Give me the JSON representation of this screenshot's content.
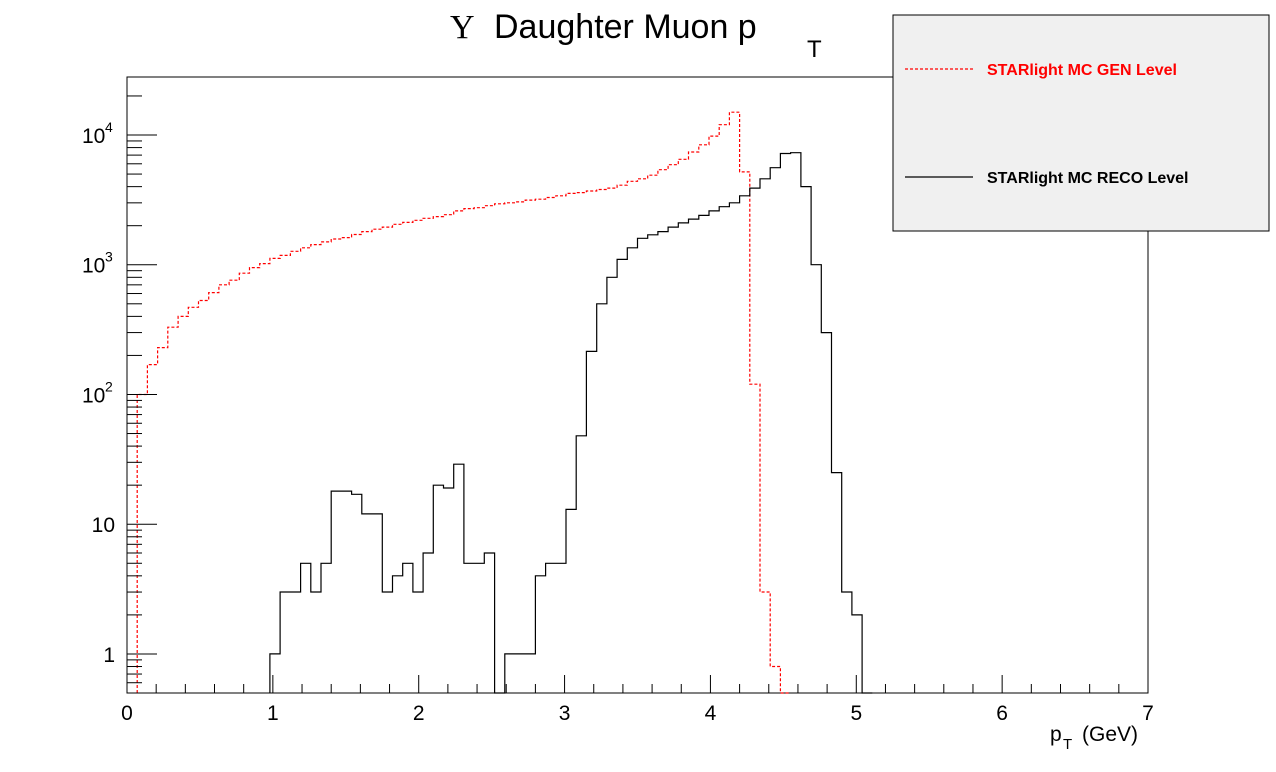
{
  "chart_data": {
    "type": "histogram-step",
    "title": {
      "symbol": "Υ",
      "main": "Daughter Muon p",
      "subscript": "T"
    },
    "xlabel": {
      "main": "p",
      "subscript": "T",
      "rest": "(GeV)"
    },
    "ylabel": "",
    "xlim": [
      0,
      7
    ],
    "ylim": [
      0.5,
      28000
    ],
    "yscale": "log",
    "grid": false,
    "bin_width": 0.07,
    "x_ticks": [
      "0",
      "1",
      "2",
      "3",
      "4",
      "5",
      "6",
      "7"
    ],
    "y_ticks": [
      {
        "value": 1,
        "base": "1",
        "exp": ""
      },
      {
        "value": 10,
        "base": "10",
        "exp": ""
      },
      {
        "value": 100,
        "base": "10",
        "exp": "2"
      },
      {
        "value": 1000,
        "base": "10",
        "exp": "3"
      },
      {
        "value": 10000,
        "base": "10",
        "exp": "4"
      }
    ],
    "legend_position": "top-right",
    "series": [
      {
        "name": "STARlight MC GEN Level",
        "color": "#ff0000",
        "style": "dashed",
        "x0": 0.07,
        "values": [
          100,
          170,
          230,
          330,
          400,
          470,
          530,
          610,
          700,
          760,
          860,
          950,
          1020,
          1120,
          1180,
          1270,
          1350,
          1430,
          1500,
          1580,
          1620,
          1710,
          1800,
          1880,
          1950,
          2050,
          2120,
          2200,
          2280,
          2350,
          2430,
          2600,
          2710,
          2750,
          2850,
          2950,
          3000,
          3050,
          3150,
          3200,
          3300,
          3400,
          3550,
          3600,
          3700,
          3800,
          3900,
          4100,
          4400,
          4600,
          4900,
          5400,
          5900,
          6500,
          7400,
          8400,
          9800,
          12000,
          15000,
          5200,
          120,
          3,
          0.8,
          0.3
        ]
      },
      {
        "name": "STARlight MC RECO Level",
        "color": "#000000",
        "style": "solid",
        "x0": 0.98,
        "values": [
          1,
          3,
          3,
          5,
          3,
          5,
          18,
          18,
          17,
          12,
          12,
          3,
          4,
          5,
          3,
          6,
          20,
          19,
          29,
          5,
          5,
          6,
          0,
          1,
          1,
          1,
          4,
          5,
          5,
          13,
          48,
          215,
          500,
          800,
          1100,
          1350,
          1600,
          1700,
          1800,
          1950,
          2100,
          2250,
          2400,
          2600,
          2800,
          3000,
          3400,
          3900,
          4600,
          5600,
          7200,
          7300,
          4000,
          1000,
          300,
          25,
          3,
          2,
          0
        ]
      }
    ]
  }
}
